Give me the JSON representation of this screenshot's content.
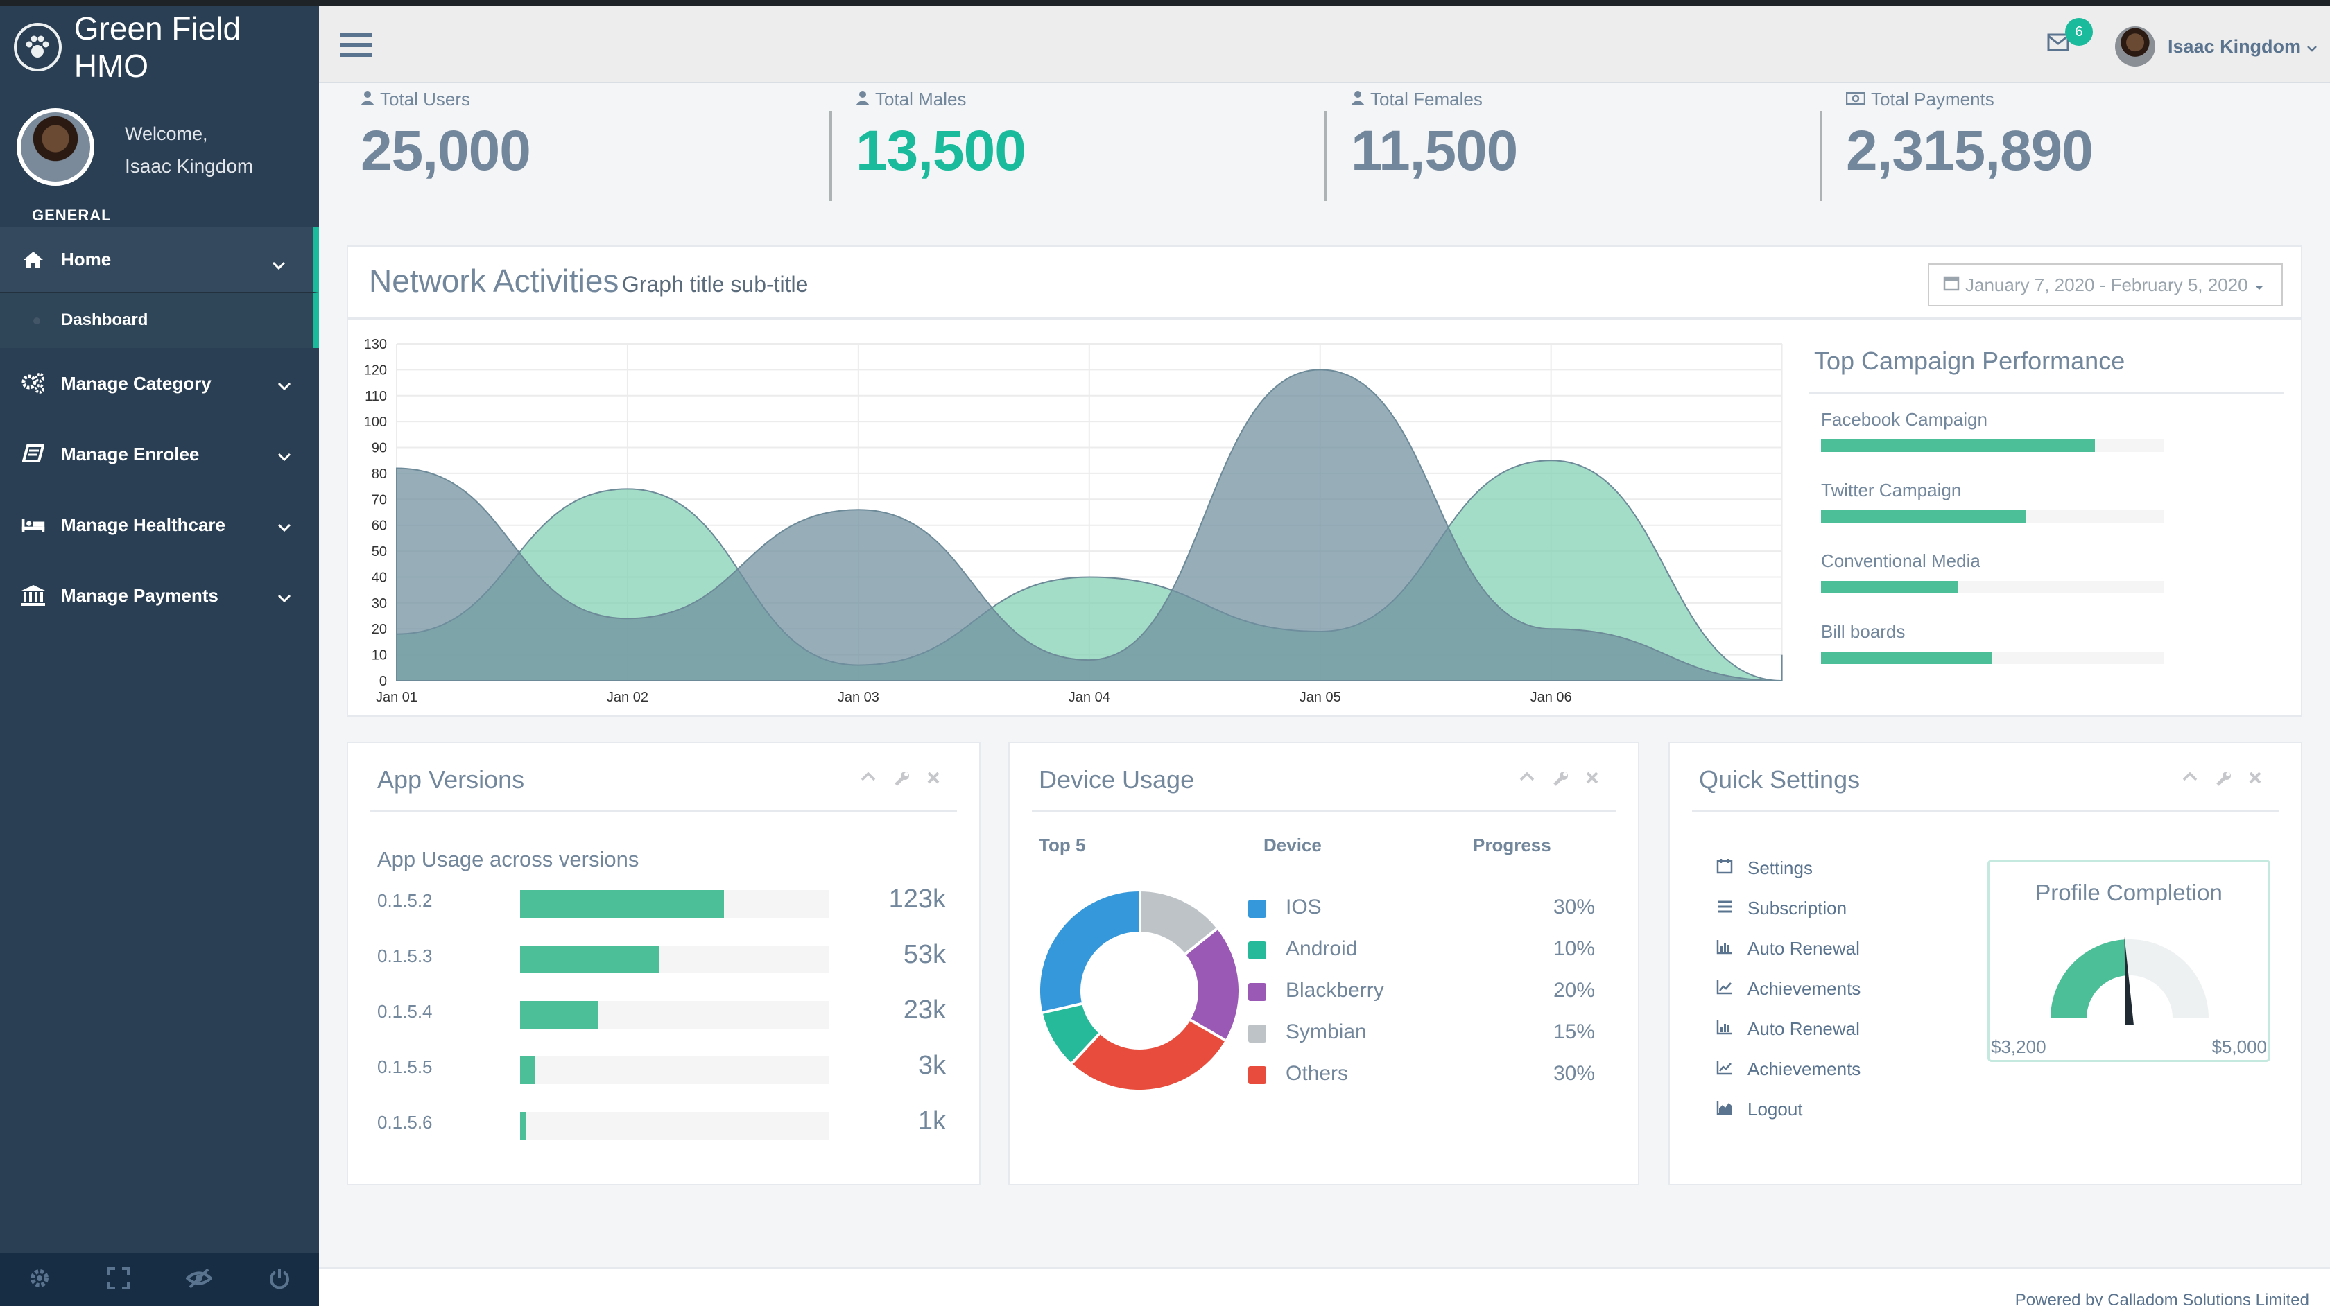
{
  "app": {
    "brand": "Green Field HMO"
  },
  "sidebar": {
    "welcome": "Welcome,",
    "user_name": "Isaac Kingdom",
    "role": "GENERAL",
    "items": [
      {
        "label": "Home",
        "icon": "home-icon"
      },
      {
        "label": "Dashboard",
        "icon": ""
      },
      {
        "label": "Manage Category",
        "icon": "gears-icon"
      },
      {
        "label": "Manage Enrolee",
        "icon": "book-icon"
      },
      {
        "label": "Manage Healthcare",
        "icon": "bed-icon"
      },
      {
        "label": "Manage Payments",
        "icon": "bank-icon"
      }
    ],
    "footer_icons": [
      "gear-icon",
      "fullscreen-icon",
      "eye-slash-icon",
      "power-icon"
    ]
  },
  "header": {
    "notifications": "6",
    "user_name": "Isaac Kingdom"
  },
  "stats": [
    {
      "label": "Total Users",
      "value": "25,000",
      "icon": "user-icon"
    },
    {
      "label": "Total Males",
      "value": "13,500",
      "icon": "user-icon"
    },
    {
      "label": "Total Females",
      "value": "11,500",
      "icon": "user-icon"
    },
    {
      "label": "Total Payments",
      "value": "2,315,890",
      "icon": "money-icon"
    }
  ],
  "network": {
    "title": "Network Activities",
    "subtitle": "Graph title sub-title",
    "date_range": "January 7, 2020 - February 5, 2020"
  },
  "chart_data": {
    "type": "area",
    "x": [
      "Jan 01",
      "Jan 02",
      "Jan 03",
      "Jan 04",
      "Jan 05",
      "Jan 06"
    ],
    "ylim": [
      0,
      130
    ],
    "yticks": [
      0,
      10,
      20,
      30,
      40,
      50,
      60,
      70,
      80,
      90,
      100,
      110,
      120,
      130
    ],
    "grid": true,
    "colors": [
      "#7fd0b2",
      "#6f8f9e"
    ],
    "series": [
      {
        "values": [
          18,
          74,
          6,
          40,
          19,
          85,
          0,
          10
        ]
      },
      {
        "values": [
          82,
          24,
          66,
          8,
          120,
          20,
          0,
          0
        ]
      }
    ],
    "x_values": [
      0,
      1,
      2,
      3,
      4,
      5,
      6,
      6
    ]
  },
  "campaigns": {
    "title": "Top Campaign Performance",
    "items": [
      {
        "label": "Facebook Campaign",
        "value": 0.8
      },
      {
        "label": "Twitter Campaign",
        "value": 0.6
      },
      {
        "label": "Conventional Media",
        "value": 0.4
      },
      {
        "label": "Bill boards",
        "value": 0.5
      }
    ]
  },
  "app_versions": {
    "title": "App Versions",
    "heading": "App Usage across versions",
    "rows": [
      {
        "version": "0.1.5.2",
        "value": "123k",
        "fill": 0.66
      },
      {
        "version": "0.1.5.3",
        "value": "53k",
        "fill": 0.45
      },
      {
        "version": "0.1.5.4",
        "value": "23k",
        "fill": 0.25
      },
      {
        "version": "0.1.5.5",
        "value": "3k",
        "fill": 0.05
      },
      {
        "version": "0.1.5.6",
        "value": "1k",
        "fill": 0.02
      }
    ]
  },
  "device_usage": {
    "title": "Device Usage",
    "headers": [
      "Top 5",
      "Device",
      "Progress"
    ],
    "items": [
      {
        "name": "IOS",
        "pct": "30%",
        "color": "#3498db",
        "share": 30
      },
      {
        "name": "Android",
        "pct": "10%",
        "color": "#26b99a",
        "share": 10
      },
      {
        "name": "Blackberry",
        "pct": "20%",
        "color": "#9b59b6",
        "share": 20
      },
      {
        "name": "Symbian",
        "pct": "15%",
        "color": "#bdc3c7",
        "share": 15
      },
      {
        "name": "Others",
        "pct": "30%",
        "color": "#e74c3c",
        "share": 30
      }
    ]
  },
  "quick_settings": {
    "title": "Quick Settings",
    "items": [
      {
        "label": "Settings",
        "icon": "calendar-icon"
      },
      {
        "label": "Subscription",
        "icon": "list-icon"
      },
      {
        "label": "Auto Renewal",
        "icon": "bar-chart-icon"
      },
      {
        "label": "Achievements",
        "icon": "line-chart-icon"
      },
      {
        "label": "Auto Renewal",
        "icon": "bar-chart-icon"
      },
      {
        "label": "Achievements",
        "icon": "line-chart-icon"
      },
      {
        "label": "Logout",
        "icon": "area-chart-icon"
      }
    ],
    "profile": {
      "title": "Profile Completion",
      "min": "$3,200",
      "max": "$5,000",
      "value": 0.6
    }
  },
  "footer": {
    "text": "Powered by Calladom Solutions Limited"
  }
}
